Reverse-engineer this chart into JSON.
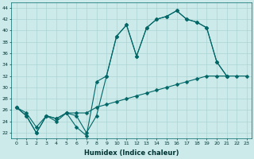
{
  "xlabel": "Humidex (Indice chaleur)",
  "bg_color": "#cceaea",
  "grid_color": "#aad4d4",
  "line_color": "#006666",
  "ylim": [
    21,
    45
  ],
  "xlim": [
    -0.5,
    23.5
  ],
  "yticks": [
    22,
    24,
    26,
    28,
    30,
    32,
    34,
    36,
    38,
    40,
    42,
    44
  ],
  "xticks": [
    0,
    1,
    2,
    3,
    4,
    5,
    6,
    7,
    8,
    9,
    10,
    11,
    12,
    13,
    14,
    15,
    16,
    17,
    18,
    19,
    20,
    21,
    22,
    23
  ],
  "line1_y": [
    26.5,
    25,
    22,
    25,
    24,
    25.5,
    23,
    21.5,
    31,
    32,
    39,
    41,
    35.5,
    40.5,
    42,
    42.5,
    43.5,
    42,
    41.5,
    40.5,
    34.5,
    32,
    null,
    null
  ],
  "line2_y": [
    26.5,
    25,
    22,
    25,
    24.5,
    25.5,
    25,
    22,
    25,
    32,
    39,
    41,
    35.5,
    40.5,
    42,
    42.5,
    43.5,
    42,
    41.5,
    40.5,
    34.5,
    32,
    null,
    null
  ],
  "line3_y": [
    26.5,
    25.5,
    23,
    25,
    24.5,
    25.5,
    25.5,
    25.5,
    26.5,
    27,
    27.5,
    28,
    28.5,
    29,
    29.5,
    30,
    30.5,
    31,
    31.5,
    32,
    32,
    32,
    32,
    32
  ]
}
